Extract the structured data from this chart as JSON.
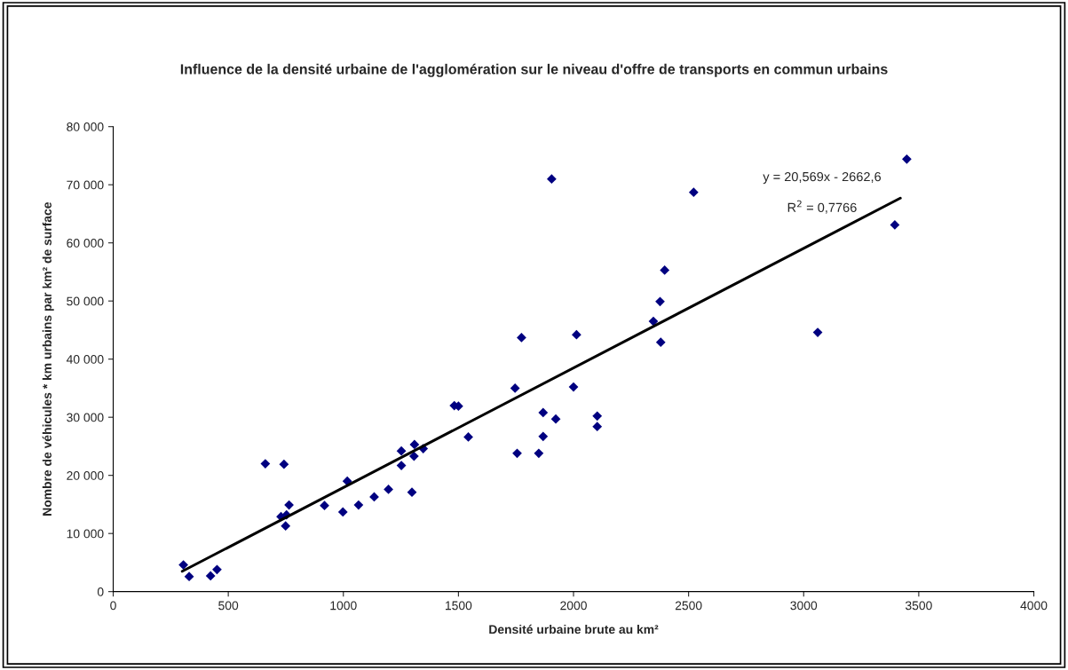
{
  "chart_data": {
    "type": "scatter",
    "title": "Influence de la densité urbaine de l'agglomération sur le niveau d'offre de transports en commun urbains",
    "xlabel": "Densité urbaine brute au km²",
    "ylabel": "Nombre de véhicules * km urbains par km² de surface",
    "xlim": [
      0,
      4000
    ],
    "xticks": [
      0,
      500,
      1000,
      1500,
      2000,
      2500,
      3000,
      3500,
      4000
    ],
    "ylim": [
      0,
      80000
    ],
    "yticks": [
      0,
      {
        "value": 10000,
        "label": "10 000"
      },
      {
        "value": 20000,
        "label": "20 000"
      },
      {
        "value": 30000,
        "label": "30 000"
      },
      {
        "value": 40000,
        "label": "40 000"
      },
      {
        "value": 50000,
        "label": "50 000"
      },
      {
        "value": 60000,
        "label": "60 000"
      },
      {
        "value": 70000,
        "label": "70 000"
      },
      {
        "value": 80000,
        "label": "80 000"
      }
    ],
    "grid": false,
    "series": [
      {
        "color": "#000080",
        "marker": "diamond",
        "x": [
          305,
          330,
          423,
          451,
          661,
          742,
          729,
          753,
          749,
          764,
          918,
          998,
          1017,
          1066,
          1134,
          1196,
          1252,
          1252,
          1298,
          1309,
          1307,
          1347,
          1482,
          1500,
          1543,
          2396,
          2376,
          2347,
          2379,
          3061,
          1774,
          2013,
          1746,
          2000,
          1868,
          1923,
          2103,
          2103,
          1868,
          1755,
          1849,
          3448,
          3396,
          2522,
          1905
        ],
        "values": [
          4600,
          2600,
          2700,
          3800,
          22000,
          21900,
          12900,
          13200,
          11300,
          14900,
          14800,
          13700,
          19000,
          14900,
          16300,
          17600,
          24200,
          21700,
          17100,
          25300,
          23300,
          24600,
          32000,
          31900,
          26600,
          55300,
          49900,
          46500,
          42900,
          44600,
          43700,
          44200,
          35000,
          35200,
          30800,
          29700,
          30200,
          28400,
          26700,
          23800,
          23800,
          74400,
          63100,
          68700,
          71000
        ]
      },
      {
        "type": "line",
        "color": "#000000",
        "marker": "none",
        "line_style": "solid",
        "x": [
          300,
          3420
        ],
        "values": [
          3500,
          67700
        ]
      }
    ],
    "annotations": [
      "y = 20,569x - 2662,6",
      "R$^{2}$ = 0,7766"
    ]
  }
}
